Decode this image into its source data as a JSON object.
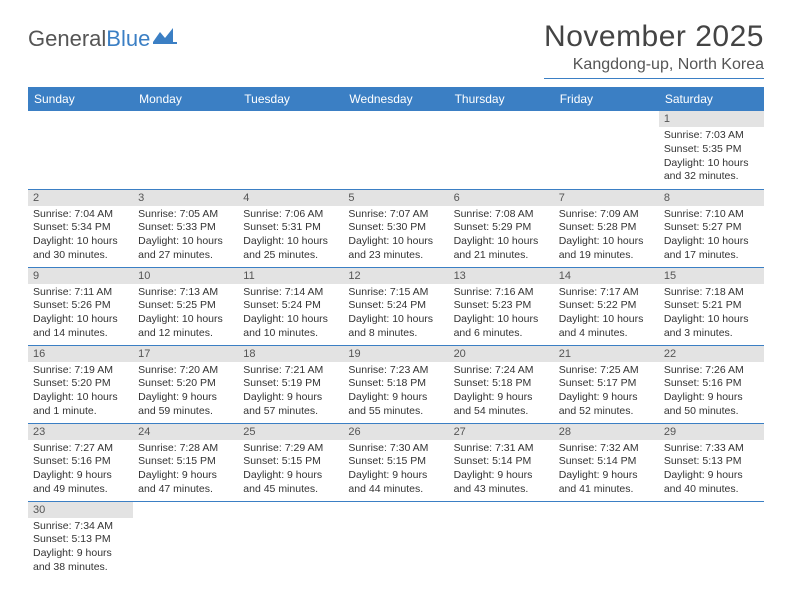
{
  "brand": {
    "part1": "General",
    "part2": "Blue"
  },
  "title": "November 2025",
  "location": "Kangdong-up, North Korea",
  "colors": {
    "header_bg": "#3b7fc4",
    "header_text": "#ffffff",
    "daynum_bg": "#e3e3e3",
    "border": "#3b7fc4"
  },
  "weekdays": [
    "Sunday",
    "Monday",
    "Tuesday",
    "Wednesday",
    "Thursday",
    "Friday",
    "Saturday"
  ],
  "grid": [
    [
      null,
      null,
      null,
      null,
      null,
      null,
      {
        "n": "1",
        "sr": "Sunrise: 7:03 AM",
        "ss": "Sunset: 5:35 PM",
        "dl": "Daylight: 10 hours and 32 minutes."
      }
    ],
    [
      {
        "n": "2",
        "sr": "Sunrise: 7:04 AM",
        "ss": "Sunset: 5:34 PM",
        "dl": "Daylight: 10 hours and 30 minutes."
      },
      {
        "n": "3",
        "sr": "Sunrise: 7:05 AM",
        "ss": "Sunset: 5:33 PM",
        "dl": "Daylight: 10 hours and 27 minutes."
      },
      {
        "n": "4",
        "sr": "Sunrise: 7:06 AM",
        "ss": "Sunset: 5:31 PM",
        "dl": "Daylight: 10 hours and 25 minutes."
      },
      {
        "n": "5",
        "sr": "Sunrise: 7:07 AM",
        "ss": "Sunset: 5:30 PM",
        "dl": "Daylight: 10 hours and 23 minutes."
      },
      {
        "n": "6",
        "sr": "Sunrise: 7:08 AM",
        "ss": "Sunset: 5:29 PM",
        "dl": "Daylight: 10 hours and 21 minutes."
      },
      {
        "n": "7",
        "sr": "Sunrise: 7:09 AM",
        "ss": "Sunset: 5:28 PM",
        "dl": "Daylight: 10 hours and 19 minutes."
      },
      {
        "n": "8",
        "sr": "Sunrise: 7:10 AM",
        "ss": "Sunset: 5:27 PM",
        "dl": "Daylight: 10 hours and 17 minutes."
      }
    ],
    [
      {
        "n": "9",
        "sr": "Sunrise: 7:11 AM",
        "ss": "Sunset: 5:26 PM",
        "dl": "Daylight: 10 hours and 14 minutes."
      },
      {
        "n": "10",
        "sr": "Sunrise: 7:13 AM",
        "ss": "Sunset: 5:25 PM",
        "dl": "Daylight: 10 hours and 12 minutes."
      },
      {
        "n": "11",
        "sr": "Sunrise: 7:14 AM",
        "ss": "Sunset: 5:24 PM",
        "dl": "Daylight: 10 hours and 10 minutes."
      },
      {
        "n": "12",
        "sr": "Sunrise: 7:15 AM",
        "ss": "Sunset: 5:24 PM",
        "dl": "Daylight: 10 hours and 8 minutes."
      },
      {
        "n": "13",
        "sr": "Sunrise: 7:16 AM",
        "ss": "Sunset: 5:23 PM",
        "dl": "Daylight: 10 hours and 6 minutes."
      },
      {
        "n": "14",
        "sr": "Sunrise: 7:17 AM",
        "ss": "Sunset: 5:22 PM",
        "dl": "Daylight: 10 hours and 4 minutes."
      },
      {
        "n": "15",
        "sr": "Sunrise: 7:18 AM",
        "ss": "Sunset: 5:21 PM",
        "dl": "Daylight: 10 hours and 3 minutes."
      }
    ],
    [
      {
        "n": "16",
        "sr": "Sunrise: 7:19 AM",
        "ss": "Sunset: 5:20 PM",
        "dl": "Daylight: 10 hours and 1 minute."
      },
      {
        "n": "17",
        "sr": "Sunrise: 7:20 AM",
        "ss": "Sunset: 5:20 PM",
        "dl": "Daylight: 9 hours and 59 minutes."
      },
      {
        "n": "18",
        "sr": "Sunrise: 7:21 AM",
        "ss": "Sunset: 5:19 PM",
        "dl": "Daylight: 9 hours and 57 minutes."
      },
      {
        "n": "19",
        "sr": "Sunrise: 7:23 AM",
        "ss": "Sunset: 5:18 PM",
        "dl": "Daylight: 9 hours and 55 minutes."
      },
      {
        "n": "20",
        "sr": "Sunrise: 7:24 AM",
        "ss": "Sunset: 5:18 PM",
        "dl": "Daylight: 9 hours and 54 minutes."
      },
      {
        "n": "21",
        "sr": "Sunrise: 7:25 AM",
        "ss": "Sunset: 5:17 PM",
        "dl": "Daylight: 9 hours and 52 minutes."
      },
      {
        "n": "22",
        "sr": "Sunrise: 7:26 AM",
        "ss": "Sunset: 5:16 PM",
        "dl": "Daylight: 9 hours and 50 minutes."
      }
    ],
    [
      {
        "n": "23",
        "sr": "Sunrise: 7:27 AM",
        "ss": "Sunset: 5:16 PM",
        "dl": "Daylight: 9 hours and 49 minutes."
      },
      {
        "n": "24",
        "sr": "Sunrise: 7:28 AM",
        "ss": "Sunset: 5:15 PM",
        "dl": "Daylight: 9 hours and 47 minutes."
      },
      {
        "n": "25",
        "sr": "Sunrise: 7:29 AM",
        "ss": "Sunset: 5:15 PM",
        "dl": "Daylight: 9 hours and 45 minutes."
      },
      {
        "n": "26",
        "sr": "Sunrise: 7:30 AM",
        "ss": "Sunset: 5:15 PM",
        "dl": "Daylight: 9 hours and 44 minutes."
      },
      {
        "n": "27",
        "sr": "Sunrise: 7:31 AM",
        "ss": "Sunset: 5:14 PM",
        "dl": "Daylight: 9 hours and 43 minutes."
      },
      {
        "n": "28",
        "sr": "Sunrise: 7:32 AM",
        "ss": "Sunset: 5:14 PM",
        "dl": "Daylight: 9 hours and 41 minutes."
      },
      {
        "n": "29",
        "sr": "Sunrise: 7:33 AM",
        "ss": "Sunset: 5:13 PM",
        "dl": "Daylight: 9 hours and 40 minutes."
      }
    ],
    [
      {
        "n": "30",
        "sr": "Sunrise: 7:34 AM",
        "ss": "Sunset: 5:13 PM",
        "dl": "Daylight: 9 hours and 38 minutes."
      },
      null,
      null,
      null,
      null,
      null,
      null
    ]
  ]
}
